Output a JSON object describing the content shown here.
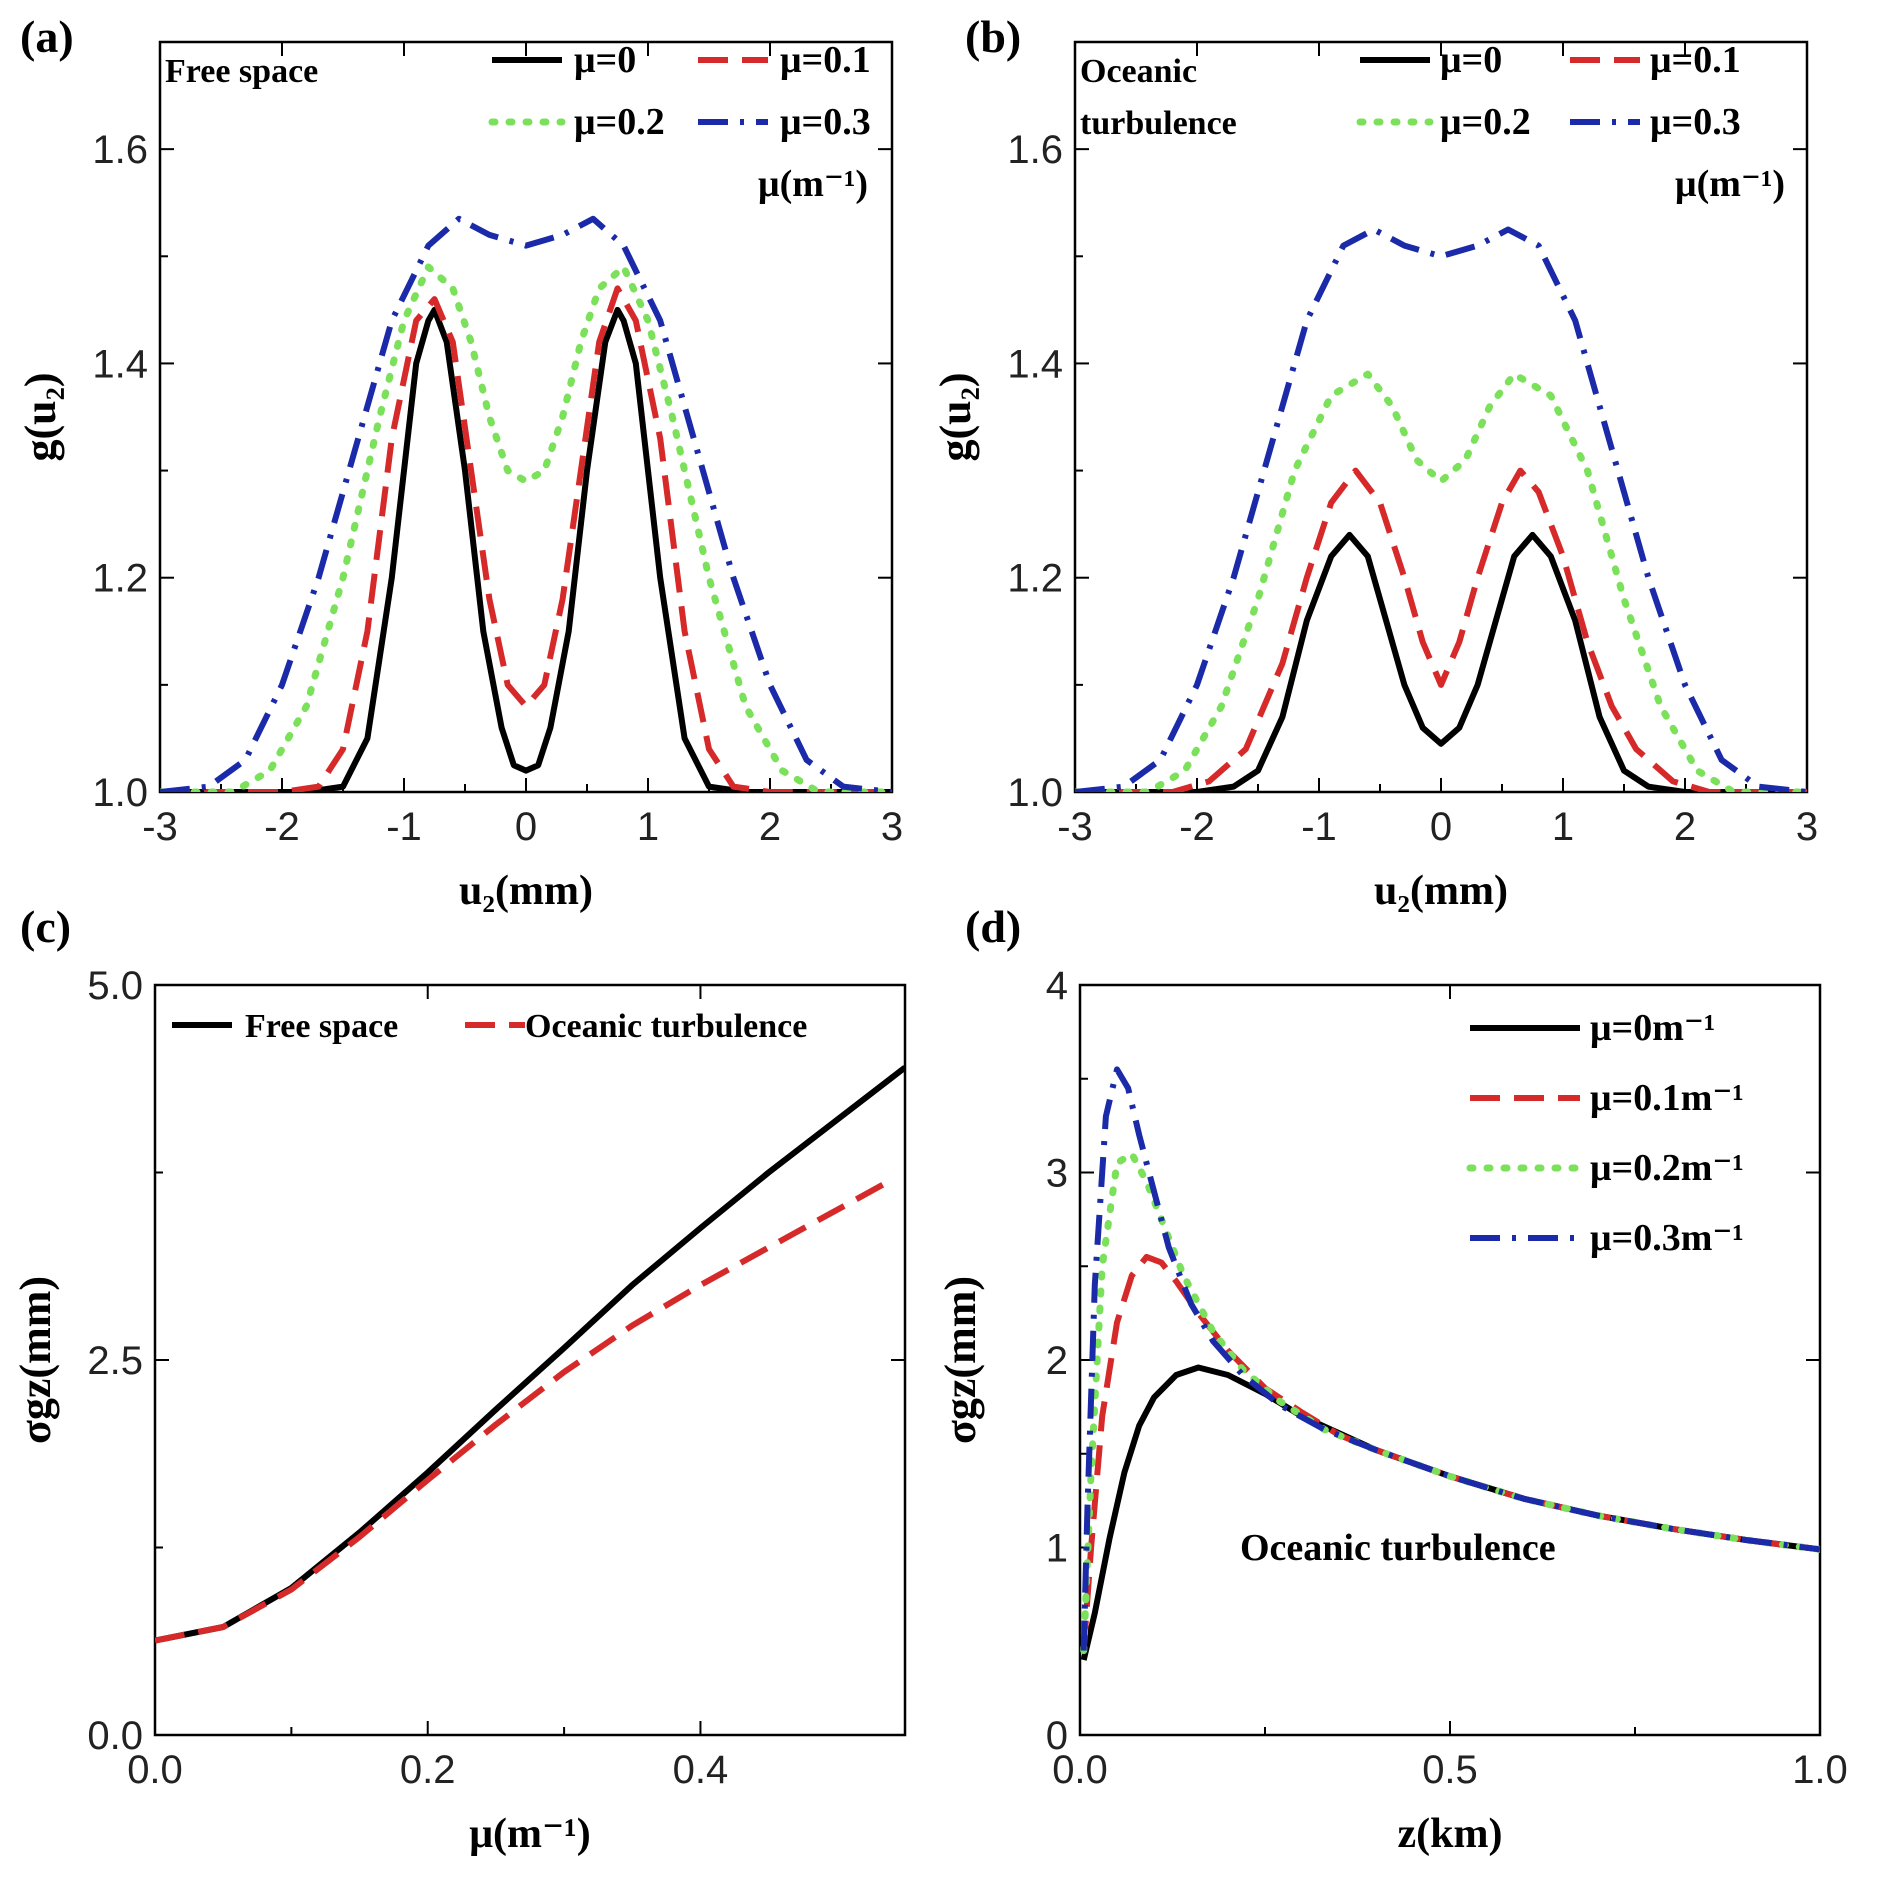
{
  "colors": {
    "black": "#000000",
    "red": "#d62a2a",
    "green": "#7be05a",
    "blue": "#1a2aa8"
  },
  "chart_data": [
    {
      "id": "a",
      "type": "line",
      "panel_label": "(a)",
      "annotation": [
        "Free space"
      ],
      "xlabel": "u₂(mm)",
      "ylabel": "g(u₂)",
      "xlim": [
        -3,
        3
      ],
      "ylim": [
        1.0,
        1.7
      ],
      "xticks": [
        -3,
        -2,
        -1,
        0,
        1,
        2,
        3
      ],
      "xtick_labels": [
        "-3",
        "-2",
        "-1",
        "0",
        "1",
        "2",
        "3"
      ],
      "yticks": [
        1.0,
        1.2,
        1.4,
        1.6
      ],
      "ytick_labels": [
        "1.0",
        "1.2",
        "1.4",
        "1.6"
      ],
      "legend_title": "μ(m⁻¹)",
      "series": [
        {
          "name": "μ=0",
          "color": "#000000",
          "style": "solid",
          "x": [
            -3,
            -2.2,
            -1.8,
            -1.5,
            -1.3,
            -1.1,
            -1.0,
            -0.9,
            -0.8,
            -0.75,
            -0.65,
            -0.5,
            -0.35,
            -0.2,
            -0.1,
            0,
            0.1,
            0.2,
            0.35,
            0.5,
            0.65,
            0.75,
            0.8,
            0.9,
            1.0,
            1.1,
            1.3,
            1.5,
            1.8,
            2.2,
            3
          ],
          "y": [
            1.0,
            1.0,
            1.0,
            1.005,
            1.05,
            1.2,
            1.3,
            1.4,
            1.44,
            1.45,
            1.42,
            1.3,
            1.15,
            1.06,
            1.025,
            1.02,
            1.025,
            1.06,
            1.15,
            1.3,
            1.42,
            1.45,
            1.44,
            1.4,
            1.3,
            1.2,
            1.05,
            1.005,
            1.0,
            1.0,
            1.0
          ]
        },
        {
          "name": "μ=0.1",
          "color": "#d62a2a",
          "style": "dash",
          "x": [
            -3,
            -2.0,
            -1.7,
            -1.5,
            -1.3,
            -1.1,
            -0.9,
            -0.75,
            -0.6,
            -0.45,
            -0.3,
            -0.15,
            0,
            0.15,
            0.3,
            0.45,
            0.6,
            0.75,
            0.9,
            1.1,
            1.3,
            1.5,
            1.7,
            2.0,
            3
          ],
          "y": [
            1.0,
            1.0,
            1.005,
            1.04,
            1.15,
            1.33,
            1.44,
            1.46,
            1.42,
            1.3,
            1.18,
            1.1,
            1.08,
            1.1,
            1.18,
            1.3,
            1.42,
            1.47,
            1.44,
            1.33,
            1.15,
            1.04,
            1.005,
            1.0,
            1.0
          ]
        },
        {
          "name": "μ=0.2",
          "color": "#7be05a",
          "style": "dot",
          "x": [
            -3,
            -2.4,
            -2.1,
            -1.8,
            -1.5,
            -1.2,
            -1.0,
            -0.8,
            -0.6,
            -0.45,
            -0.3,
            -0.15,
            0,
            0.15,
            0.3,
            0.45,
            0.6,
            0.8,
            1.0,
            1.2,
            1.5,
            1.8,
            2.1,
            2.4,
            3
          ],
          "y": [
            1.0,
            1.0,
            1.02,
            1.08,
            1.2,
            1.35,
            1.44,
            1.49,
            1.47,
            1.42,
            1.35,
            1.3,
            1.29,
            1.3,
            1.35,
            1.42,
            1.47,
            1.49,
            1.44,
            1.35,
            1.2,
            1.08,
            1.02,
            1.0,
            1.0
          ]
        },
        {
          "name": "μ=0.3",
          "color": "#1a2aa8",
          "style": "dashdot",
          "x": [
            -3,
            -2.6,
            -2.3,
            -2.0,
            -1.7,
            -1.4,
            -1.1,
            -0.8,
            -0.55,
            -0.3,
            0,
            0.3,
            0.55,
            0.8,
            1.1,
            1.4,
            1.7,
            2.0,
            2.3,
            2.6,
            3
          ],
          "y": [
            1.0,
            1.005,
            1.03,
            1.1,
            1.2,
            1.32,
            1.44,
            1.51,
            1.535,
            1.52,
            1.51,
            1.52,
            1.535,
            1.51,
            1.44,
            1.32,
            1.2,
            1.1,
            1.03,
            1.005,
            1.0
          ]
        }
      ]
    },
    {
      "id": "b",
      "type": "line",
      "panel_label": "(b)",
      "annotation": [
        "Oceanic",
        "turbulence"
      ],
      "xlabel": "u₂(mm)",
      "ylabel": "g(u₂)",
      "xlim": [
        -3,
        3
      ],
      "ylim": [
        1.0,
        1.7
      ],
      "xticks": [
        -3,
        -2,
        -1,
        0,
        1,
        2,
        3
      ],
      "xtick_labels": [
        "-3",
        "-2",
        "-1",
        "0",
        "1",
        "2",
        "3"
      ],
      "yticks": [
        1.0,
        1.2,
        1.4,
        1.6
      ],
      "ytick_labels": [
        "1.0",
        "1.2",
        "1.4",
        "1.6"
      ],
      "legend_title": "μ(m⁻¹)",
      "series": [
        {
          "name": "μ=0",
          "color": "#000000",
          "style": "solid",
          "x": [
            -3,
            -2.0,
            -1.7,
            -1.5,
            -1.3,
            -1.1,
            -0.9,
            -0.75,
            -0.6,
            -0.45,
            -0.3,
            -0.15,
            0,
            0.15,
            0.3,
            0.45,
            0.6,
            0.75,
            0.9,
            1.1,
            1.3,
            1.5,
            1.7,
            2.0,
            3
          ],
          "y": [
            1.0,
            1.0,
            1.005,
            1.02,
            1.07,
            1.16,
            1.22,
            1.24,
            1.22,
            1.16,
            1.1,
            1.06,
            1.045,
            1.06,
            1.1,
            1.16,
            1.22,
            1.24,
            1.22,
            1.16,
            1.07,
            1.02,
            1.005,
            1.0,
            1.0
          ]
        },
        {
          "name": "μ=0.1",
          "color": "#d62a2a",
          "style": "dash",
          "x": [
            -3,
            -2.2,
            -1.9,
            -1.6,
            -1.3,
            -1.1,
            -0.9,
            -0.7,
            -0.5,
            -0.3,
            -0.15,
            0,
            0.15,
            0.3,
            0.5,
            0.65,
            0.8,
            1.0,
            1.2,
            1.4,
            1.6,
            1.9,
            2.2,
            3
          ],
          "y": [
            1.0,
            1.0,
            1.01,
            1.04,
            1.12,
            1.2,
            1.27,
            1.3,
            1.27,
            1.2,
            1.14,
            1.1,
            1.14,
            1.2,
            1.27,
            1.3,
            1.28,
            1.22,
            1.14,
            1.08,
            1.04,
            1.01,
            1.0,
            1.0
          ]
        },
        {
          "name": "μ=0.2",
          "color": "#7be05a",
          "style": "dot",
          "x": [
            -3,
            -2.4,
            -2.1,
            -1.8,
            -1.5,
            -1.2,
            -0.9,
            -0.6,
            -0.4,
            -0.2,
            0,
            0.2,
            0.4,
            0.6,
            0.9,
            1.2,
            1.5,
            1.8,
            2.1,
            2.4,
            3
          ],
          "y": [
            1.0,
            1.0,
            1.02,
            1.08,
            1.18,
            1.3,
            1.37,
            1.39,
            1.36,
            1.31,
            1.29,
            1.31,
            1.36,
            1.39,
            1.37,
            1.3,
            1.18,
            1.08,
            1.02,
            1.0,
            1.0
          ]
        },
        {
          "name": "μ=0.3",
          "color": "#1a2aa8",
          "style": "dashdot",
          "x": [
            -3,
            -2.6,
            -2.3,
            -2.0,
            -1.7,
            -1.4,
            -1.1,
            -0.8,
            -0.55,
            -0.3,
            0,
            0.3,
            0.55,
            0.8,
            1.1,
            1.4,
            1.7,
            2.0,
            2.3,
            2.6,
            3
          ],
          "y": [
            1.0,
            1.005,
            1.03,
            1.1,
            1.2,
            1.32,
            1.44,
            1.51,
            1.525,
            1.51,
            1.5,
            1.51,
            1.525,
            1.51,
            1.44,
            1.32,
            1.2,
            1.1,
            1.03,
            1.005,
            1.0
          ]
        }
      ]
    },
    {
      "id": "c",
      "type": "line",
      "panel_label": "(c)",
      "xlabel": "μ(m⁻¹)",
      "ylabel": "σgz(mm)",
      "xlim": [
        0,
        0.55
      ],
      "ylim": [
        0,
        5
      ],
      "xticks": [
        0,
        0.2,
        0.4
      ],
      "xtick_labels": [
        "0.0",
        "0.2",
        "0.4"
      ],
      "yticks": [
        0,
        2.5,
        5.0
      ],
      "ytick_labels": [
        "0.0",
        "2.5",
        "5.0"
      ],
      "series": [
        {
          "name": "Free space",
          "color": "#000000",
          "style": "solid",
          "x": [
            0,
            0.05,
            0.1,
            0.15,
            0.2,
            0.25,
            0.3,
            0.35,
            0.4,
            0.45,
            0.5,
            0.55
          ],
          "y": [
            0.63,
            0.72,
            0.98,
            1.35,
            1.75,
            2.17,
            2.58,
            3.0,
            3.38,
            3.75,
            4.1,
            4.45
          ]
        },
        {
          "name": "Oceanic turbulence",
          "color": "#d62a2a",
          "style": "dash",
          "x": [
            0,
            0.05,
            0.1,
            0.15,
            0.2,
            0.25,
            0.3,
            0.35,
            0.4,
            0.45,
            0.5,
            0.54
          ],
          "y": [
            0.63,
            0.72,
            0.97,
            1.32,
            1.7,
            2.07,
            2.42,
            2.73,
            3.0,
            3.25,
            3.5,
            3.7
          ]
        }
      ]
    },
    {
      "id": "d",
      "type": "line",
      "panel_label": "(d)",
      "annotation": [
        "Oceanic turbulence"
      ],
      "xlabel": "z(km)",
      "ylabel": "σgz(mm)",
      "xlim": [
        0,
        1.0
      ],
      "ylim": [
        0,
        4
      ],
      "xticks": [
        0,
        0.5,
        1.0
      ],
      "xtick_labels": [
        "0.0",
        "0.5",
        "1.0"
      ],
      "yticks": [
        0,
        1,
        2,
        3,
        4
      ],
      "ytick_labels": [
        "0",
        "1",
        "2",
        "3",
        "4"
      ],
      "series": [
        {
          "name": "μ=0m⁻¹",
          "color": "#000000",
          "style": "solid",
          "x": [
            0.005,
            0.02,
            0.04,
            0.06,
            0.08,
            0.1,
            0.13,
            0.16,
            0.2,
            0.25,
            0.3,
            0.4,
            0.5,
            0.6,
            0.7,
            0.8,
            0.9,
            1.0
          ],
          "y": [
            0.4,
            0.65,
            1.05,
            1.4,
            1.65,
            1.8,
            1.92,
            1.96,
            1.92,
            1.82,
            1.7,
            1.52,
            1.38,
            1.26,
            1.17,
            1.1,
            1.04,
            0.99
          ]
        },
        {
          "name": "μ=0.1m⁻¹",
          "color": "#d62a2a",
          "style": "dash",
          "x": [
            0.005,
            0.015,
            0.03,
            0.05,
            0.07,
            0.09,
            0.11,
            0.13,
            0.16,
            0.2,
            0.25,
            0.3,
            0.35,
            0.4,
            0.5,
            0.6,
            0.7,
            0.8,
            0.9,
            1.0
          ],
          "y": [
            0.45,
            1.0,
            1.7,
            2.2,
            2.45,
            2.55,
            2.52,
            2.42,
            2.25,
            2.05,
            1.85,
            1.72,
            1.6,
            1.52,
            1.38,
            1.26,
            1.17,
            1.1,
            1.04,
            0.99
          ]
        },
        {
          "name": "μ=0.2m⁻¹",
          "color": "#7be05a",
          "style": "dot",
          "x": [
            0.005,
            0.015,
            0.03,
            0.05,
            0.07,
            0.09,
            0.11,
            0.14,
            0.18,
            0.22,
            0.27,
            0.33,
            0.4,
            0.5,
            0.6,
            0.7,
            0.8,
            0.9,
            1.0
          ],
          "y": [
            0.45,
            1.4,
            2.5,
            3.05,
            3.1,
            2.95,
            2.75,
            2.45,
            2.15,
            1.95,
            1.78,
            1.63,
            1.52,
            1.38,
            1.26,
            1.17,
            1.1,
            1.04,
            0.99
          ]
        },
        {
          "name": "μ=0.3m⁻¹",
          "color": "#1a2aa8",
          "style": "dashdot",
          "x": [
            0.005,
            0.01,
            0.02,
            0.035,
            0.05,
            0.065,
            0.08,
            0.1,
            0.12,
            0.15,
            0.18,
            0.22,
            0.27,
            0.33,
            0.4,
            0.5,
            0.6,
            0.7,
            0.8,
            0.9,
            1.0
          ],
          "y": [
            0.45,
            1.2,
            2.4,
            3.3,
            3.55,
            3.45,
            3.2,
            2.9,
            2.6,
            2.3,
            2.1,
            1.92,
            1.76,
            1.63,
            1.52,
            1.38,
            1.26,
            1.17,
            1.1,
            1.04,
            0.99
          ]
        }
      ]
    }
  ]
}
